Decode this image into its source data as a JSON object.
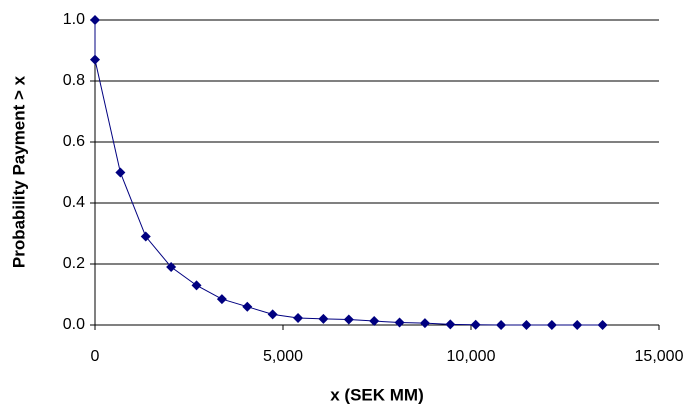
{
  "chart_data": {
    "type": "line",
    "x_label": "x (SEK MM)",
    "y_label": "Probability Payment > x",
    "x": [
      0,
      0,
      675,
      1350,
      2025,
      2700,
      3375,
      4050,
      4725,
      5400,
      6075,
      6750,
      7425,
      8100,
      8775,
      9450,
      10125,
      10800,
      11475,
      12150,
      12825,
      13500
    ],
    "series": [
      {
        "name": "Probability Payment > x",
        "color": "#000080",
        "values": [
          1.0,
          0.87,
          0.5,
          0.29,
          0.19,
          0.13,
          0.085,
          0.06,
          0.035,
          0.023,
          0.02,
          0.018,
          0.013,
          0.008,
          0.006,
          0.002,
          0.001,
          0,
          0,
          0,
          0,
          0
        ]
      }
    ],
    "xlim": [
      0,
      15000
    ],
    "xticks": [
      0,
      {
        "value": 5000,
        "label": "5,000"
      },
      {
        "value": 10000,
        "label": "10,000"
      },
      {
        "value": 15000,
        "label": "15,000"
      }
    ],
    "ylim": [
      0,
      1
    ],
    "yticks": [
      {
        "value": 0,
        "label": "0.0"
      },
      0.2,
      0.4,
      0.6,
      0.8,
      {
        "value": 1,
        "label": "1.0"
      }
    ],
    "grid": true
  }
}
